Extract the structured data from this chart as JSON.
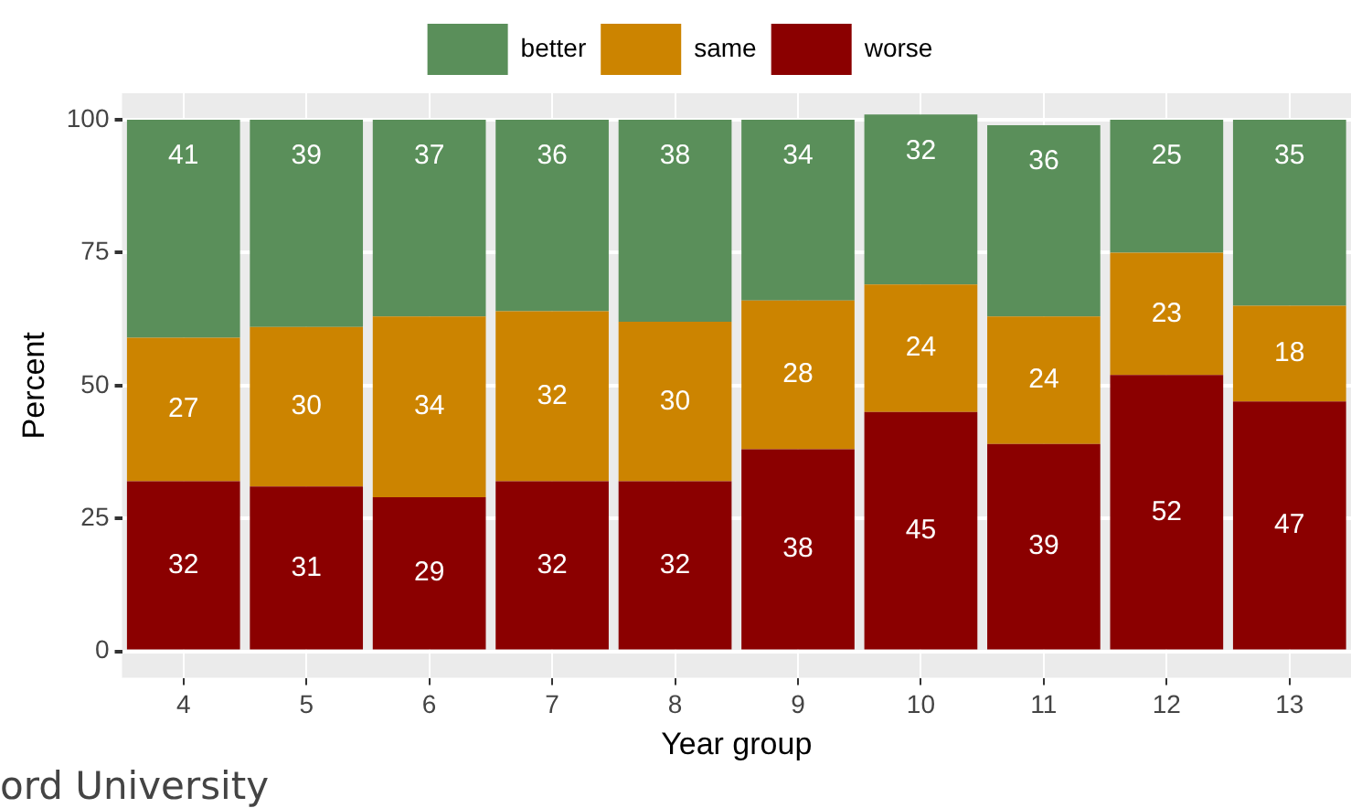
{
  "chart_data": {
    "type": "bar",
    "stacked": true,
    "xlabel": "Year group",
    "ylabel": "Percent",
    "categories": [
      "4",
      "5",
      "6",
      "7",
      "8",
      "9",
      "10",
      "11",
      "12",
      "13"
    ],
    "series": [
      {
        "name": "worse",
        "color": "#8b0000",
        "values": [
          32,
          31,
          29,
          32,
          32,
          38,
          45,
          39,
          52,
          47
        ]
      },
      {
        "name": "same",
        "color": "#cc8400",
        "values": [
          27,
          30,
          34,
          32,
          30,
          28,
          24,
          24,
          23,
          18
        ]
      },
      {
        "name": "better",
        "color": "#5a8f5a",
        "values": [
          41,
          39,
          37,
          36,
          38,
          34,
          32,
          36,
          25,
          35
        ]
      }
    ],
    "ylim": [
      -5,
      105
    ],
    "yticks": [
      0,
      25,
      50,
      75,
      100
    ],
    "grid": true,
    "legend": "top",
    "data_labels": true,
    "annotations": [
      "ord University"
    ]
  }
}
